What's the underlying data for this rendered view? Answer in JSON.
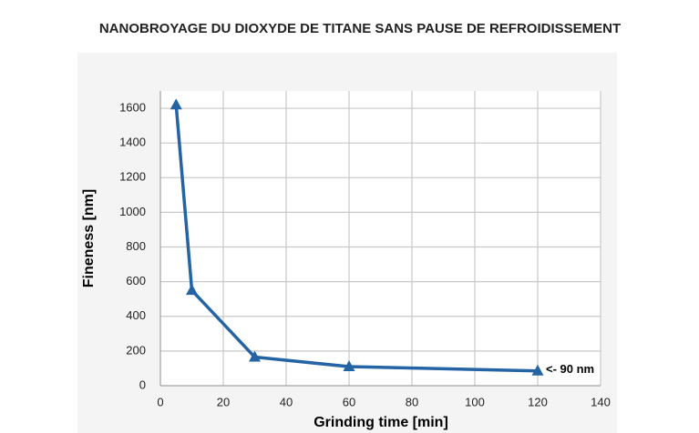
{
  "chart_data": {
    "type": "line",
    "title": "NANOBROYAGE DU DIOXYDE DE TITANE SANS PAUSE DE REFROIDISSEMENT",
    "x_label": "Grinding time [min]",
    "y_label": "Fineness [nm]",
    "x": [
      5,
      10,
      30,
      60,
      120
    ],
    "values": [
      1620,
      550,
      165,
      110,
      85
    ],
    "color": "#2463a4",
    "annotation": "<- 90 nm",
    "xlim": [
      0,
      140
    ],
    "xticks": [
      0,
      20,
      40,
      60,
      80,
      100,
      120,
      140
    ],
    "ylim": [
      0,
      1700
    ],
    "yticks": [
      0,
      200,
      400,
      600,
      800,
      1000,
      1200,
      1400,
      1600
    ],
    "grid": true
  }
}
